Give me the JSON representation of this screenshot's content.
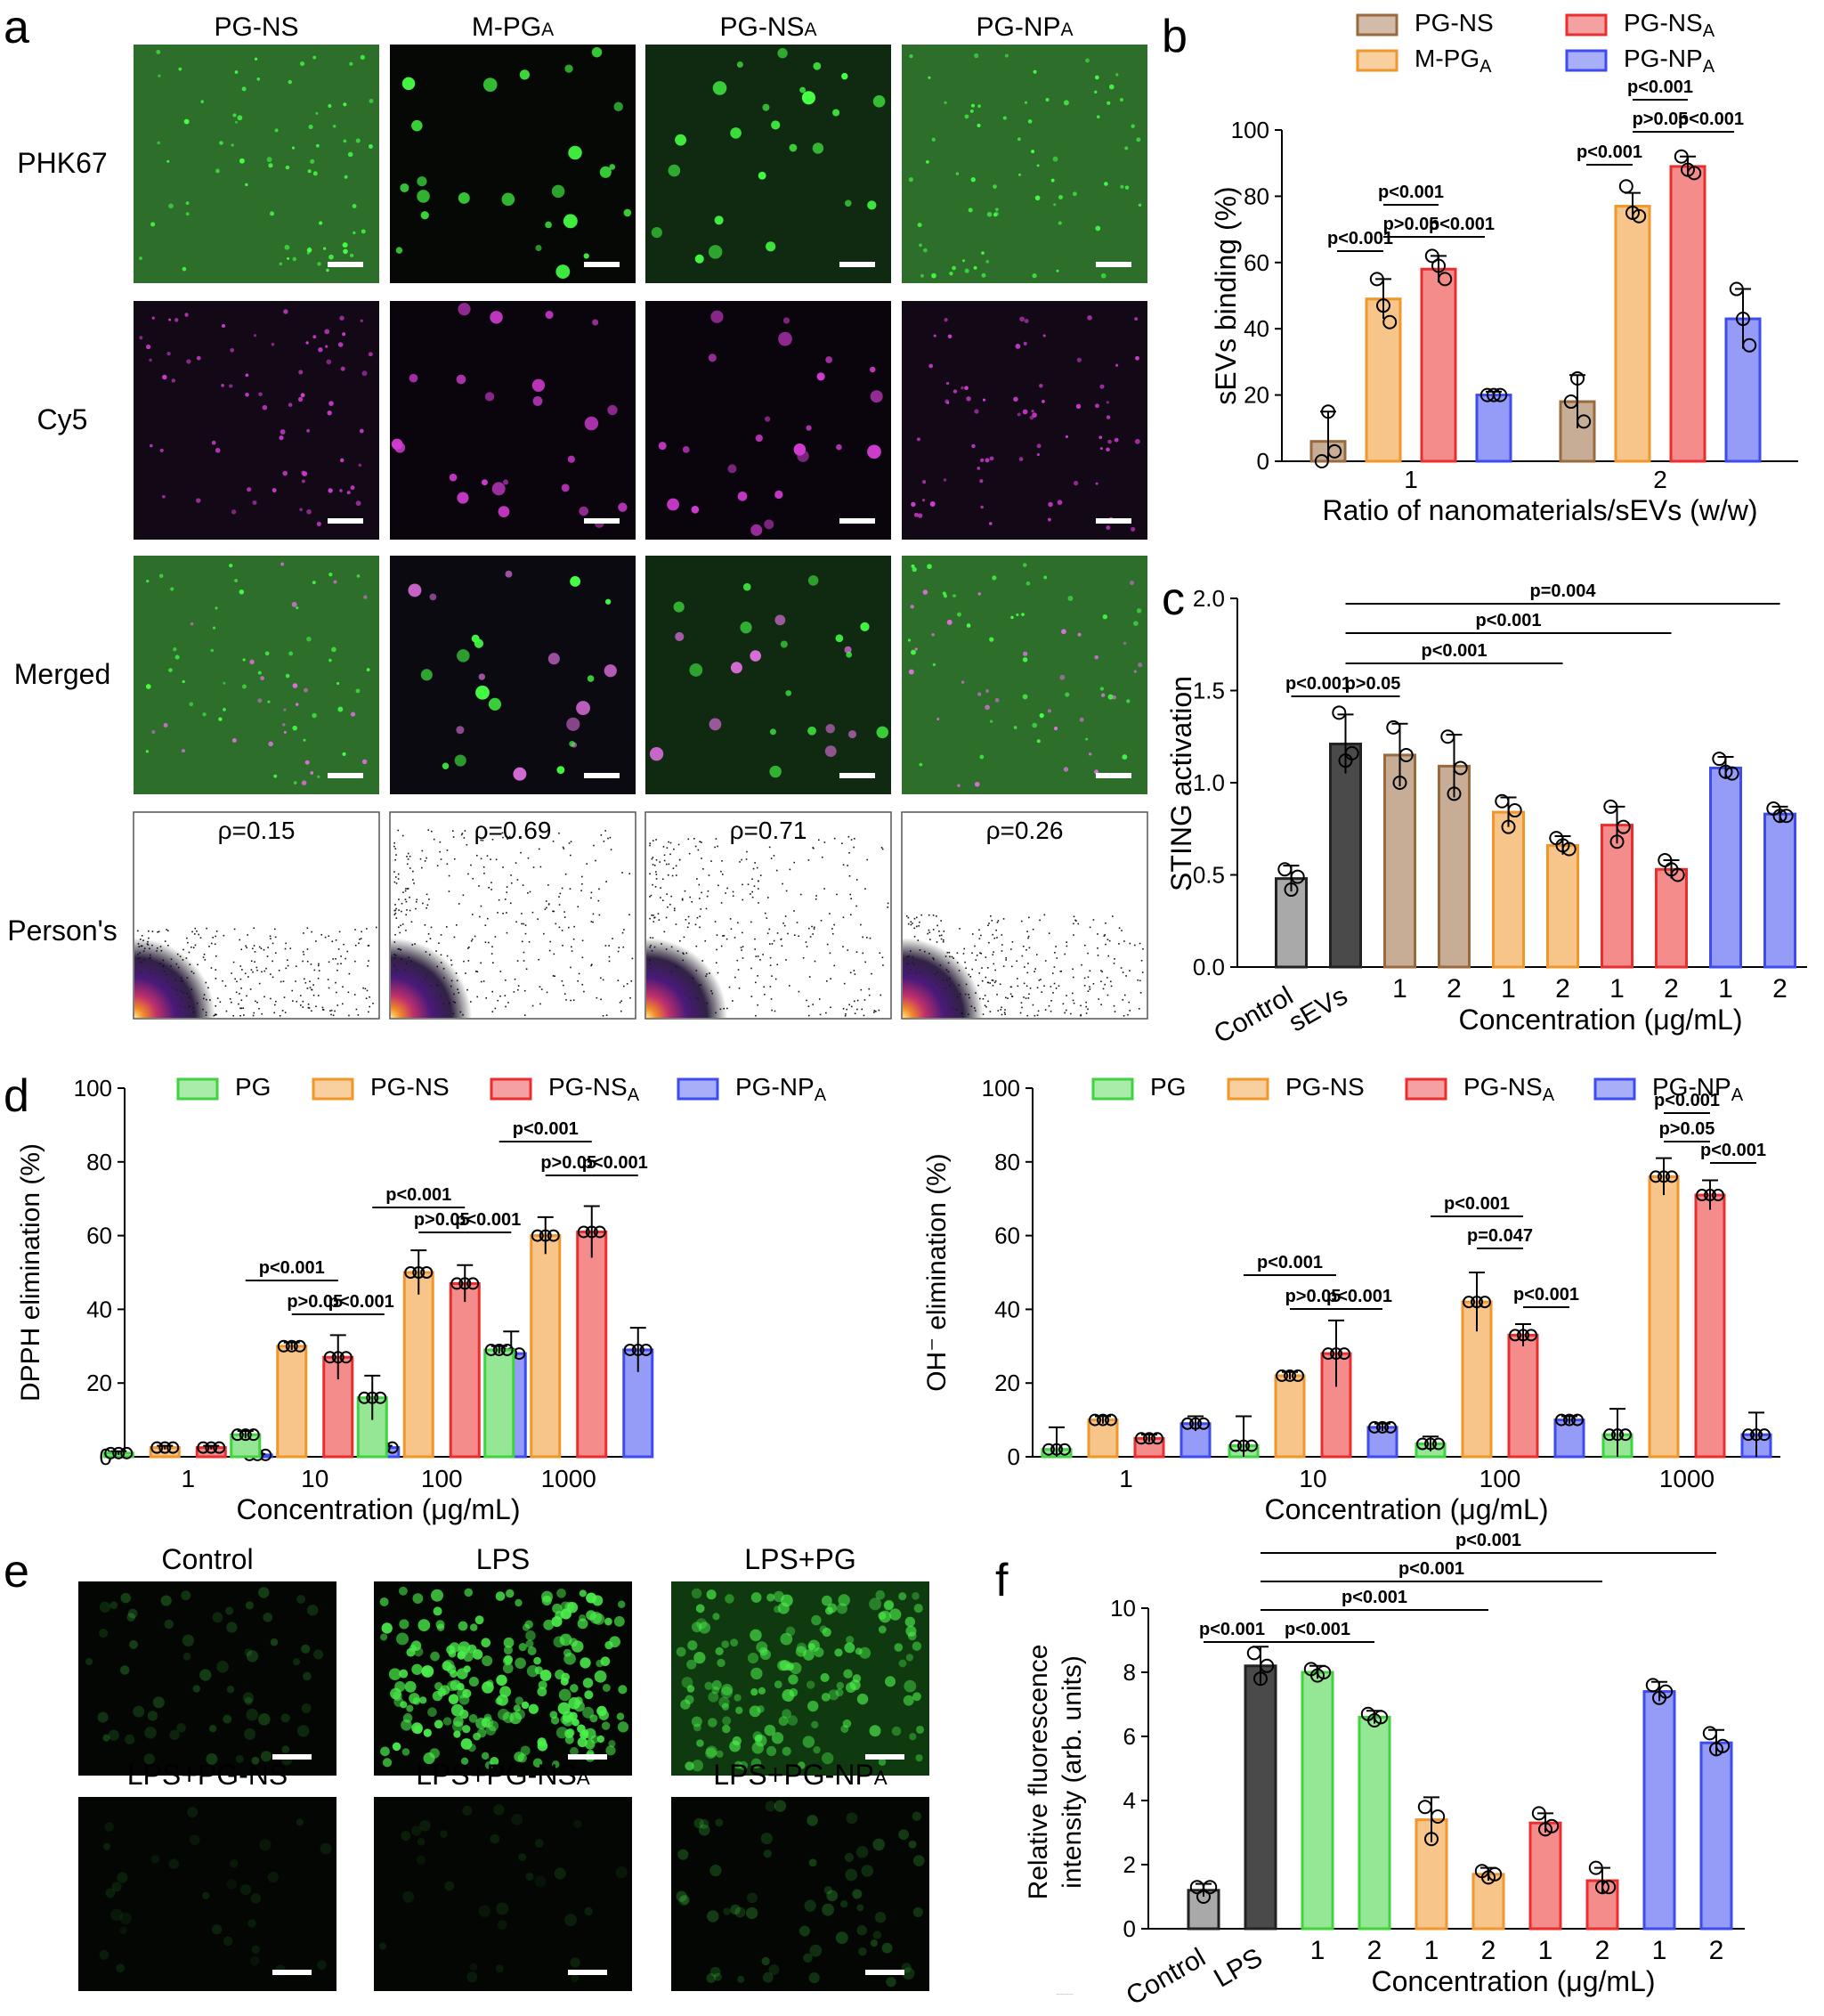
{
  "panel_letters": [
    "a",
    "b",
    "c",
    "d",
    "e",
    "f"
  ],
  "panel_a": {
    "columns": [
      "PG-NS",
      "M-PG",
      "PG-NS",
      "PG-NP"
    ],
    "column_subscripts": [
      "",
      "A",
      "A",
      "A"
    ],
    "rows": [
      "PHK67",
      "Cy5",
      "Merged",
      "Person's"
    ],
    "rho": [
      "ρ=0.15",
      "ρ=0.69",
      "ρ=0.71",
      "ρ=0.26"
    ]
  },
  "panel_e": {
    "labels": [
      "Control",
      "LPS",
      "LPS+PG",
      "LPS+PG-NS",
      "LPS+PG-NS",
      "LPS+PG-NP"
    ],
    "subscripts": [
      "",
      "",
      "",
      "",
      "A",
      "A"
    ],
    "brightness": [
      "low",
      "high",
      "medium",
      "very-low",
      "very-low",
      "low"
    ]
  },
  "colors": {
    "PG": "#3fd33f",
    "PG-NS": "#f0962a",
    "PG-NS_A": "#ec2d2d",
    "PG-NP_A": "#3d4bf0",
    "PG-NS_b": "#9a6a3f",
    "Control": "#a9a9a9",
    "sEVs": "#4a4a4a"
  },
  "chart_data": [
    {
      "panel": "b",
      "type": "bar",
      "xlabel": "Ratio of nanomaterials/sEVs (w/w)",
      "ylabel": "sEVs binding (%)",
      "ylim": [
        0,
        100
      ],
      "yticks": [
        "0",
        "20",
        "40",
        "60",
        "80",
        "100"
      ],
      "categories": [
        "1",
        "2"
      ],
      "legend": [
        "PG-NS",
        "M-PG_A",
        "PG-NS_A",
        "PG-NP_A"
      ],
      "series": [
        {
          "name": "PG-NS",
          "values": [
            6,
            18
          ],
          "errors": [
            9,
            8
          ]
        },
        {
          "name": "M-PG_A",
          "values": [
            49,
            77
          ],
          "errors": [
            6,
            4
          ]
        },
        {
          "name": "PG-NS_A",
          "values": [
            58,
            89
          ],
          "errors": [
            4,
            3
          ]
        },
        {
          "name": "PG-NP_A",
          "values": [
            20,
            43
          ],
          "errors": [
            1,
            9
          ]
        }
      ],
      "points": [
        [
          [
            0,
            15,
            3
          ],
          [
            18,
            25,
            12
          ]
        ],
        [
          [
            55,
            47,
            42
          ],
          [
            83,
            75,
            74
          ]
        ],
        [
          [
            62,
            59,
            55
          ],
          [
            92,
            88,
            87
          ]
        ],
        [
          [
            20,
            20,
            20
          ],
          [
            52,
            43,
            35
          ]
        ]
      ],
      "annotations": [
        "p<0.001",
        "p<0.001",
        "p>0.05",
        "p<0.001",
        "p<0.001",
        "p<0.001",
        "p>0.05",
        "p<0.001"
      ]
    },
    {
      "panel": "c",
      "type": "bar",
      "xlabel": "Concentration (μg/mL)",
      "ylabel": "STING activation",
      "ylim": [
        0,
        2.0
      ],
      "yticks": [
        "0.0",
        "0.5",
        "1.0",
        "1.5",
        "2.0"
      ],
      "categories": [
        "Control",
        "sEVs",
        "1",
        "2",
        "1",
        "2",
        "1",
        "2",
        "1",
        "2"
      ],
      "values": [
        0.48,
        1.21,
        1.15,
        1.09,
        0.84,
        0.66,
        0.77,
        0.53,
        1.08,
        0.83
      ],
      "errors": [
        0.07,
        0.16,
        0.17,
        0.17,
        0.08,
        0.05,
        0.1,
        0.05,
        0.06,
        0.04
      ],
      "points": [
        [
          0.53,
          0.42,
          0.49
        ],
        [
          1.38,
          1.12,
          1.16
        ],
        [
          1.3,
          1.0,
          1.15
        ],
        [
          1.25,
          0.94,
          1.08
        ],
        [
          0.9,
          0.76,
          0.85
        ],
        [
          0.7,
          0.66,
          0.64
        ],
        [
          0.87,
          0.68,
          0.76
        ],
        [
          0.58,
          0.53,
          0.5
        ],
        [
          1.13,
          1.06,
          1.05
        ],
        [
          0.86,
          0.82,
          0.82
        ]
      ],
      "annotations": [
        "p<0.001",
        "p>0.05",
        "p<0.001",
        "p<0.001",
        "p=0.004"
      ]
    },
    {
      "panel": "d-left",
      "type": "bar",
      "xlabel": "Concentration (μg/mL)",
      "ylabel": "DPPH elimination (%)",
      "ylim": [
        0,
        100
      ],
      "yticks": [
        "0",
        "20",
        "40",
        "60",
        "80",
        "100"
      ],
      "categories": [
        "1",
        "10",
        "100",
        "1000"
      ],
      "legend": [
        "PG",
        "PG-NS",
        "PG-NS_A",
        "PG-NP_A"
      ],
      "series": [
        {
          "name": "PG",
          "values": [
            1,
            6,
            16,
            29
          ],
          "errors": [
            0.5,
            1,
            6,
            1
          ]
        },
        {
          "name": "PG-NS",
          "values": [
            2.5,
            30,
            50,
            60
          ],
          "errors": [
            0.5,
            1,
            6,
            5
          ]
        },
        {
          "name": "PG-NS_A",
          "values": [
            2.5,
            27,
            47,
            61
          ],
          "errors": [
            0.5,
            6,
            5,
            7
          ]
        },
        {
          "name": "PG-NP_A",
          "values": [
            0.5,
            2.5,
            28,
            29
          ],
          "errors": [
            0.3,
            0.5,
            6,
            6
          ]
        }
      ],
      "annotations": [
        "p<0.001",
        "p>0.05",
        "p<0.001",
        "p<0.001",
        "p>0.05",
        "p<0.001",
        "p<0.001",
        "p>0.05",
        "p<0.001"
      ]
    },
    {
      "panel": "d-right",
      "type": "bar",
      "xlabel": "Concentration (μg/mL)",
      "ylabel": "OH⁻ elimination (%)",
      "ylim": [
        0,
        100
      ],
      "yticks": [
        "0",
        "20",
        "40",
        "60",
        "80",
        "100"
      ],
      "categories": [
        "1",
        "10",
        "100",
        "1000"
      ],
      "legend": [
        "PG",
        "PG-NS",
        "PG-NS_A",
        "PG-NP_A"
      ],
      "series": [
        {
          "name": "PG",
          "values": [
            2,
            3,
            3.5,
            6
          ],
          "errors": [
            6,
            8,
            2,
            7
          ]
        },
        {
          "name": "PG-NS",
          "values": [
            10,
            22,
            42,
            76
          ],
          "errors": [
            1,
            1,
            8,
            5
          ]
        },
        {
          "name": "PG-NS_A",
          "values": [
            5,
            28,
            33,
            71
          ],
          "errors": [
            1,
            9,
            3,
            4
          ]
        },
        {
          "name": "PG-NP_A",
          "values": [
            9,
            8,
            10,
            6
          ],
          "errors": [
            2,
            1,
            1,
            6
          ]
        }
      ],
      "annotations": [
        "p<0.001",
        "p>0.05",
        "p<0.001",
        "p<0.001",
        "p=0.047",
        "p<0.001",
        "p<0.001",
        "p>0.05",
        "p<0.001"
      ]
    },
    {
      "panel": "f",
      "type": "bar",
      "xlabel": "Concentration (μg/mL)",
      "ylabel": "Relative fluorescence intensity (arb. units)",
      "ylim": [
        0,
        10
      ],
      "yticks": [
        "0",
        "2",
        "4",
        "6",
        "8",
        "10"
      ],
      "categories": [
        "Control",
        "LPS",
        "1",
        "2",
        "1",
        "2",
        "1",
        "2",
        "1",
        "2"
      ],
      "values": [
        1.2,
        8.2,
        8.0,
        6.6,
        3.4,
        1.7,
        3.3,
        1.5,
        7.4,
        5.8
      ],
      "errors": [
        0.2,
        0.6,
        0.2,
        0.2,
        0.7,
        0.2,
        0.3,
        0.4,
        0.3,
        0.4
      ],
      "points": [
        [
          1.3,
          1.0,
          1.3
        ],
        [
          8.6,
          7.8,
          8.2
        ],
        [
          8.1,
          7.9,
          8.0
        ],
        [
          6.7,
          6.5,
          6.6
        ],
        [
          3.8,
          2.8,
          3.5
        ],
        [
          1.8,
          1.6,
          1.7
        ],
        [
          3.6,
          3.1,
          3.2
        ],
        [
          1.9,
          1.3,
          1.3
        ],
        [
          7.6,
          7.2,
          7.4
        ],
        [
          6.1,
          5.6,
          5.7
        ]
      ],
      "annotations": [
        "p<0.001",
        "p<0.001",
        "p<0.001",
        "p<0.001",
        "p<0.001"
      ]
    }
  ]
}
